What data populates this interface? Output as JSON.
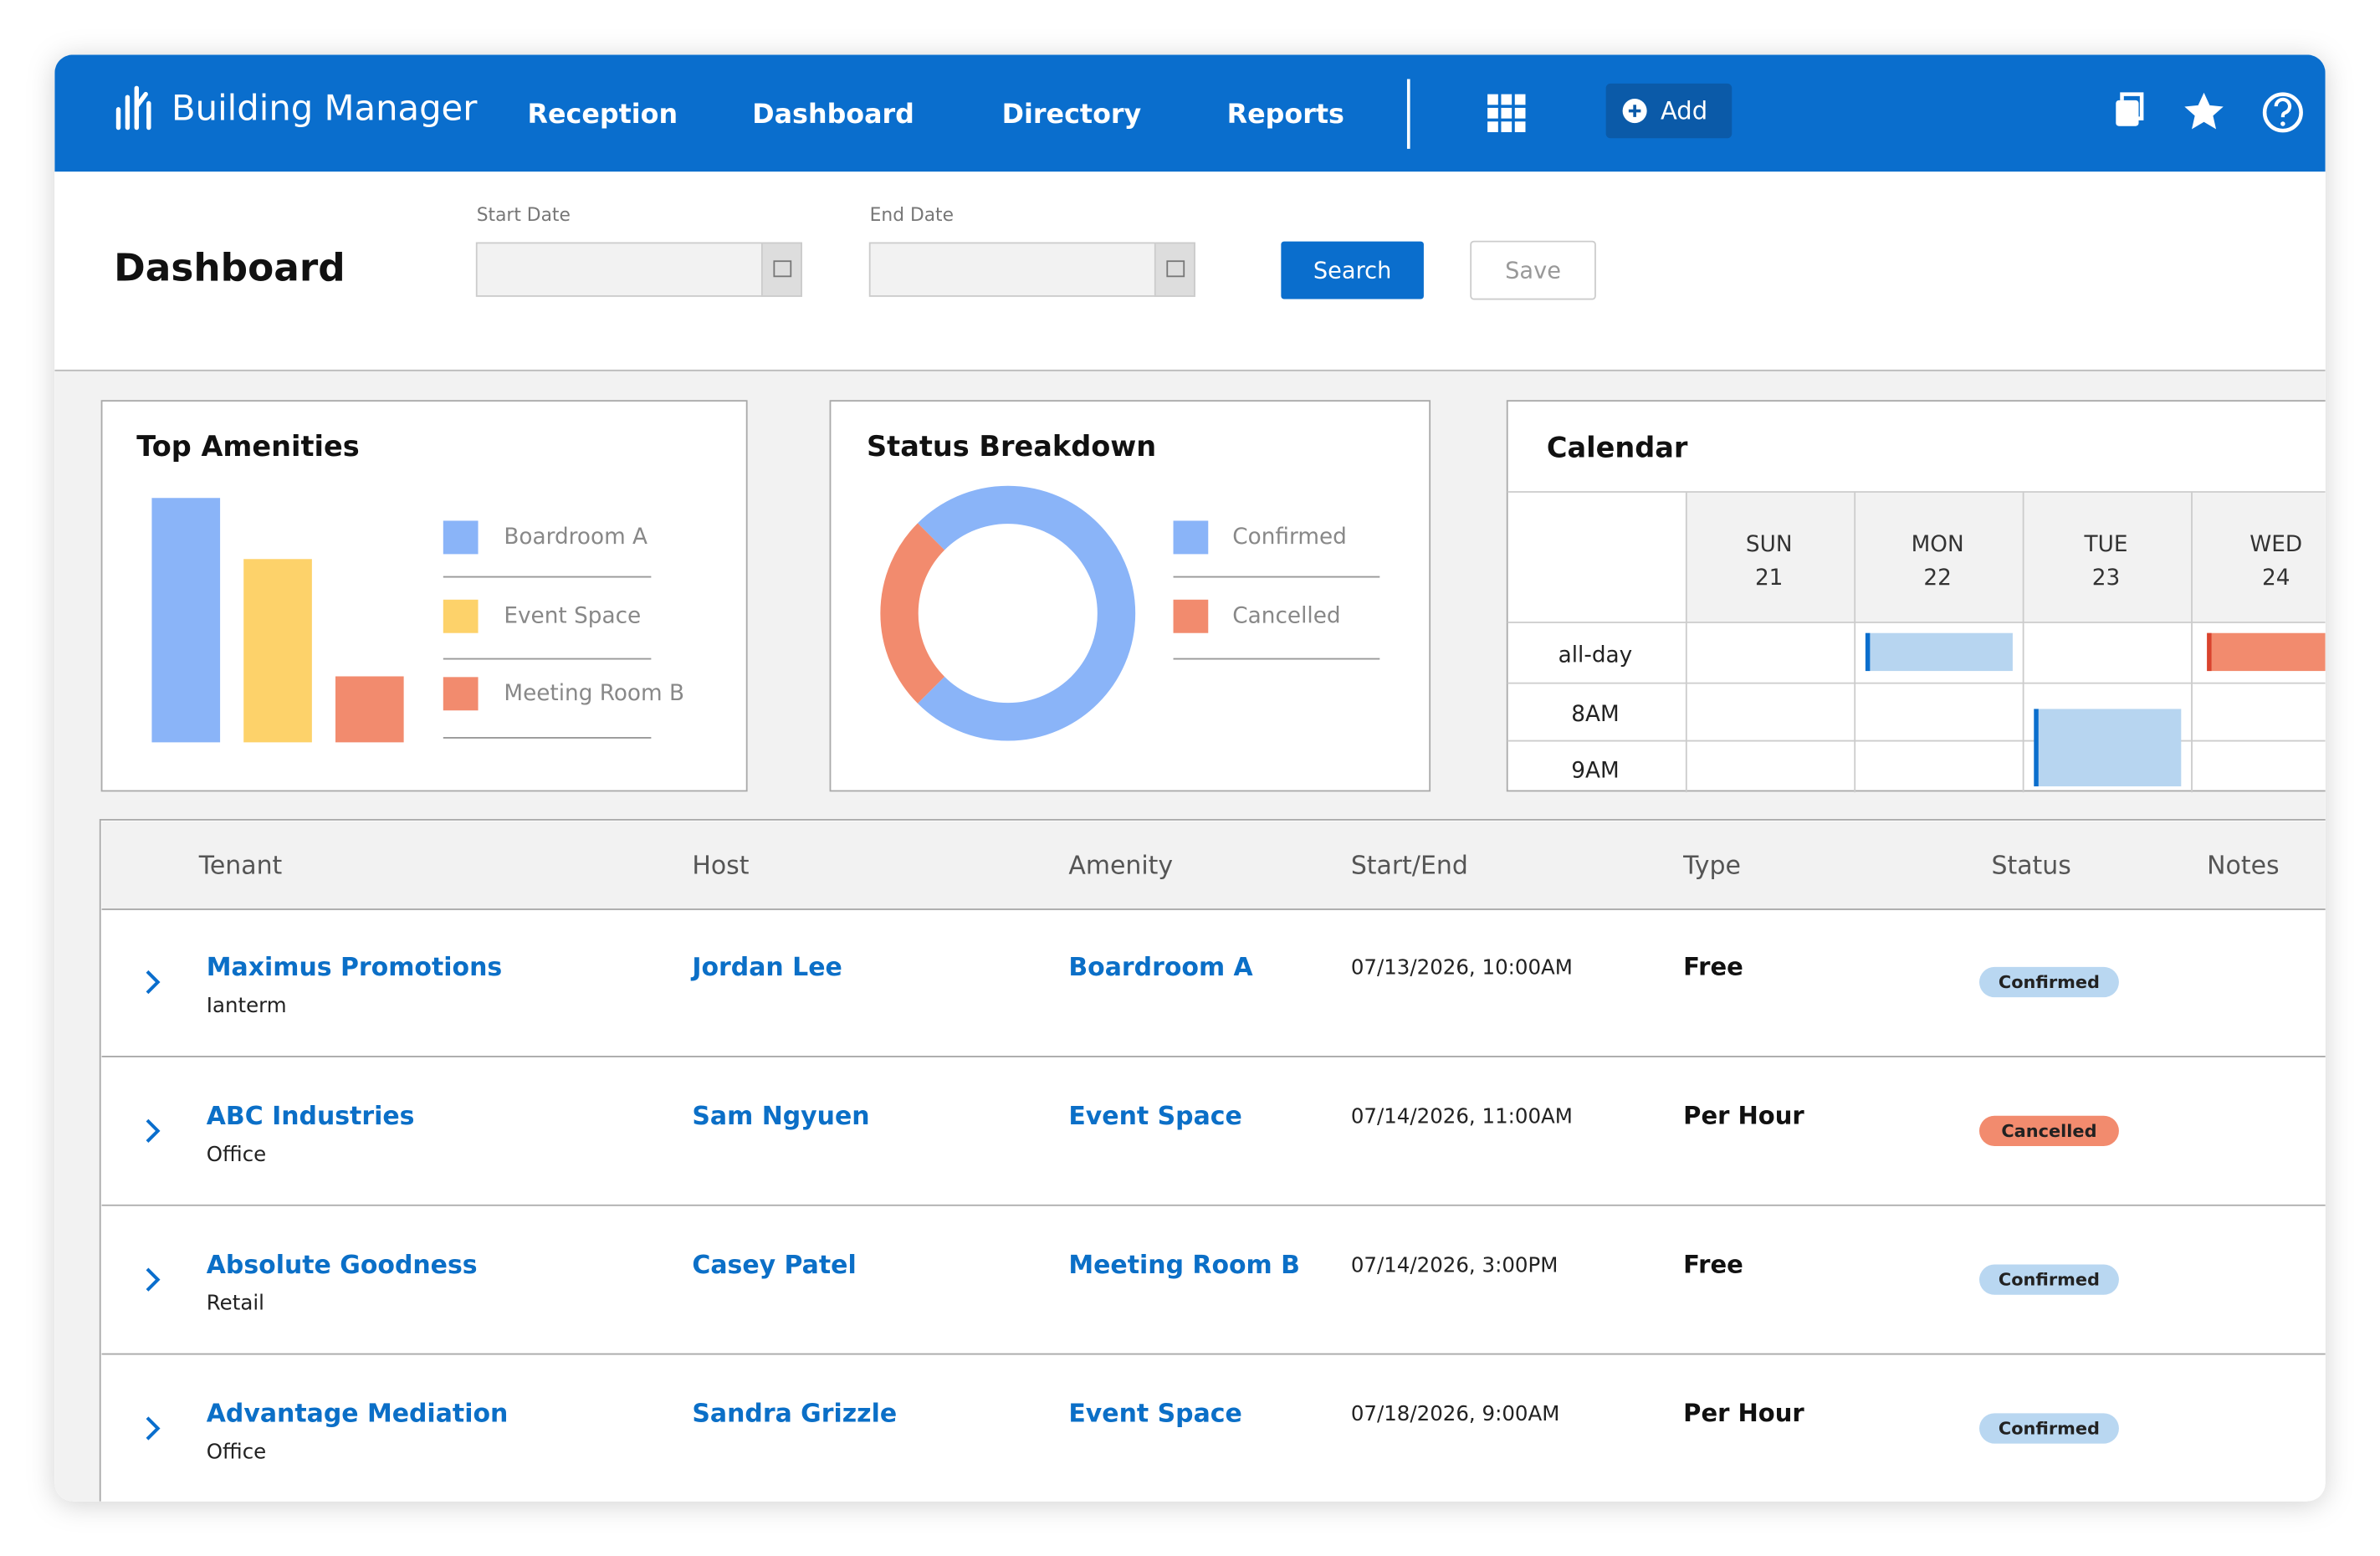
{
  "header": {
    "brand": "Building Manager",
    "nav": [
      "Reception",
      "Dashboard",
      "Directory",
      "Reports"
    ],
    "add": "Add"
  },
  "toolbar": {
    "title": "Dashboard",
    "start_label": "Start Date",
    "end_label": "End Date",
    "search": "Search",
    "save": "Save"
  },
  "chart_data": [
    {
      "type": "bar",
      "title": "Top Amenities",
      "categories": [
        "Boardroom A",
        "Event Space",
        "Meeting Room B"
      ],
      "values": [
        100,
        75,
        27
      ],
      "colors": [
        "#8ab4f8",
        "#fdd26a",
        "#f28b6e"
      ]
    },
    {
      "type": "pie",
      "title": "Status Breakdown",
      "categories": [
        "Confirmed",
        "Cancelled"
      ],
      "values": [
        75,
        25
      ],
      "colors": [
        "#8ab4f8",
        "#f28b6e"
      ],
      "donut": true
    }
  ],
  "calendar": {
    "title": "Calendar",
    "days": [
      {
        "name": "SUN",
        "date": "21"
      },
      {
        "name": "MON",
        "date": "22"
      },
      {
        "name": "TUE",
        "date": "23"
      },
      {
        "name": "WED",
        "date": "24"
      }
    ],
    "times": [
      "all-day",
      "8AM",
      "9AM"
    ]
  },
  "table": {
    "columns": [
      "Tenant",
      "Host",
      "Amenity",
      "Start/End",
      "Type",
      "Status",
      "Notes"
    ],
    "rows": [
      {
        "tenant": "Maximus Promotions",
        "tenant_type": "Ianterm",
        "host": "Jordan Lee",
        "amenity": "Boardroom A",
        "start": "07/13/2026, 10:00AM",
        "type": "Free",
        "status": "Confirmed",
        "status_color": "#b9d7f1"
      },
      {
        "tenant": "ABC Industries",
        "tenant_type": "Office",
        "host": "Sam Ngyuen",
        "amenity": "Event Space",
        "start": "07/14/2026, 11:00AM",
        "type": "Per Hour",
        "status": "Cancelled",
        "status_color": "#f28b6e"
      },
      {
        "tenant": "Absolute Goodness",
        "tenant_type": "Retail",
        "host": "Casey Patel",
        "amenity": "Meeting Room B",
        "start": "07/14/2026, 3:00PM",
        "type": "Free",
        "status": "Confirmed",
        "status_color": "#b9d7f1"
      },
      {
        "tenant": "Advantage Mediation",
        "tenant_type": "Office",
        "host": "Sandra Grizzle",
        "amenity": "Event Space",
        "start": "07/18/2026, 9:00AM",
        "type": "Per Hour",
        "status": "Confirmed",
        "status_color": "#b9d7f1"
      }
    ]
  }
}
